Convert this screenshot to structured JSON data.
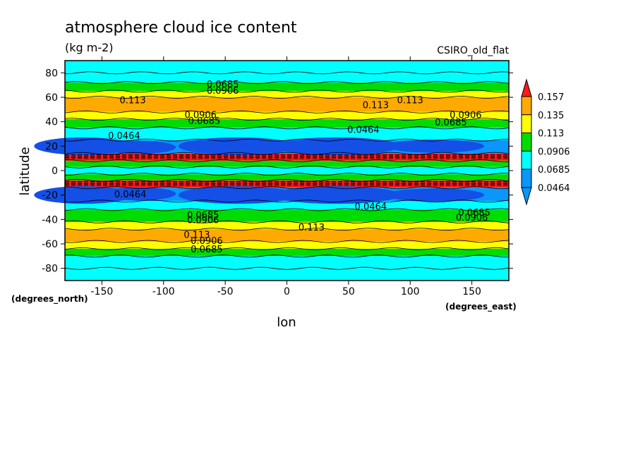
{
  "chart_data": {
    "type": "heatmap",
    "title": "atmosphere cloud ice content",
    "subtitle": "(kg m-2)",
    "model_label": "CSIRO_old_flat",
    "xlabel": "lon",
    "ylabel": "latitude",
    "x_units": "(degrees_east)",
    "y_units": "(degrees_north)",
    "xlim": [
      -180,
      180
    ],
    "ylim": [
      -90,
      90
    ],
    "x_ticks": [
      -150,
      -100,
      -50,
      0,
      50,
      100,
      150
    ],
    "y_ticks": [
      -80,
      -60,
      -40,
      -20,
      0,
      20,
      40,
      60,
      80
    ],
    "x_tick_labels": [
      "-150",
      "-100",
      "-50",
      "0",
      "50",
      "100",
      "150"
    ],
    "y_tick_labels": [
      "-80",
      "-60",
      "-40",
      "-20",
      "0",
      "20",
      "40",
      "60",
      "80"
    ],
    "colorbar": {
      "levels": [
        0.0464,
        0.0685,
        0.0906,
        0.113,
        0.135,
        0.157
      ],
      "labels": [
        "0.0464",
        "0.0685",
        "0.0906",
        "0.113",
        "0.135",
        "0.157"
      ],
      "colors": [
        "#0a96fa",
        "#00ffff",
        "#00dc00",
        "#ffff00",
        "#ffaa00",
        "#ff1a1a"
      ],
      "below_color": "#1450e6"
    },
    "zonal_bands": [
      {
        "lat_min": 80,
        "lat_max": 90,
        "level": 1
      },
      {
        "lat_min": 72,
        "lat_max": 80,
        "level": 1
      },
      {
        "lat_min": 65,
        "lat_max": 72,
        "level": 2
      },
      {
        "lat_min": 60,
        "lat_max": 65,
        "level": 3
      },
      {
        "lat_min": 48,
        "lat_max": 60,
        "level": 4
      },
      {
        "lat_min": 42,
        "lat_max": 48,
        "level": 3
      },
      {
        "lat_min": 35,
        "lat_max": 42,
        "level": 2
      },
      {
        "lat_min": 25,
        "lat_max": 35,
        "level": 1
      },
      {
        "lat_min": 14,
        "lat_max": 25,
        "level": 0
      },
      {
        "lat_min": 8,
        "lat_max": 14,
        "level": 5
      },
      {
        "lat_min": 3,
        "lat_max": 8,
        "level": 2
      },
      {
        "lat_min": -3,
        "lat_max": 3,
        "level": 1
      },
      {
        "lat_min": -8,
        "lat_max": -3,
        "level": 2
      },
      {
        "lat_min": -14,
        "lat_max": -8,
        "level": 5
      },
      {
        "lat_min": -25,
        "lat_max": -14,
        "level": 0
      },
      {
        "lat_min": -32,
        "lat_max": -25,
        "level": 1
      },
      {
        "lat_min": -42,
        "lat_max": -32,
        "level": 2
      },
      {
        "lat_min": -48,
        "lat_max": -42,
        "level": 3
      },
      {
        "lat_min": -58,
        "lat_max": -48,
        "level": 4
      },
      {
        "lat_min": -64,
        "lat_max": -58,
        "level": 3
      },
      {
        "lat_min": -70,
        "lat_max": -64,
        "level": 2
      },
      {
        "lat_min": -80,
        "lat_max": -70,
        "level": 1
      },
      {
        "lat_min": -90,
        "lat_max": -80,
        "level": 1
      }
    ],
    "contour_labels": [
      {
        "text": "0.0685",
        "lon": -52,
        "lat": 68
      },
      {
        "text": "0.0906",
        "lon": -52,
        "lat": 63
      },
      {
        "text": "0.113",
        "lon": -125,
        "lat": 55
      },
      {
        "text": "0.113",
        "lon": 72,
        "lat": 51
      },
      {
        "text": "0.113",
        "lon": 100,
        "lat": 55
      },
      {
        "text": "0.0906",
        "lon": -70,
        "lat": 43
      },
      {
        "text": "0.0685",
        "lon": -67,
        "lat": 38
      },
      {
        "text": "0.0906",
        "lon": 145,
        "lat": 43
      },
      {
        "text": "0.0685",
        "lon": 133,
        "lat": 37
      },
      {
        "text": "0.0464",
        "lon": -132,
        "lat": 26
      },
      {
        "text": "0.0464",
        "lon": 62,
        "lat": 31
      },
      {
        "text": "0.0464",
        "lon": -127,
        "lat": -22
      },
      {
        "text": "0.0464",
        "lon": 68,
        "lat": -32
      },
      {
        "text": "0.0685",
        "lon": -68,
        "lat": -39
      },
      {
        "text": "0.0906",
        "lon": -68,
        "lat": -43
      },
      {
        "text": "0.0685",
        "lon": 152,
        "lat": -37
      },
      {
        "text": "0.0906",
        "lon": 150,
        "lat": -41
      },
      {
        "text": "0.113",
        "lon": -73,
        "lat": -55
      },
      {
        "text": "0.113",
        "lon": 20,
        "lat": -49
      },
      {
        "text": "0.0906",
        "lon": -65,
        "lat": -60
      },
      {
        "text": "0.0685",
        "lon": -65,
        "lat": -67
      }
    ]
  }
}
